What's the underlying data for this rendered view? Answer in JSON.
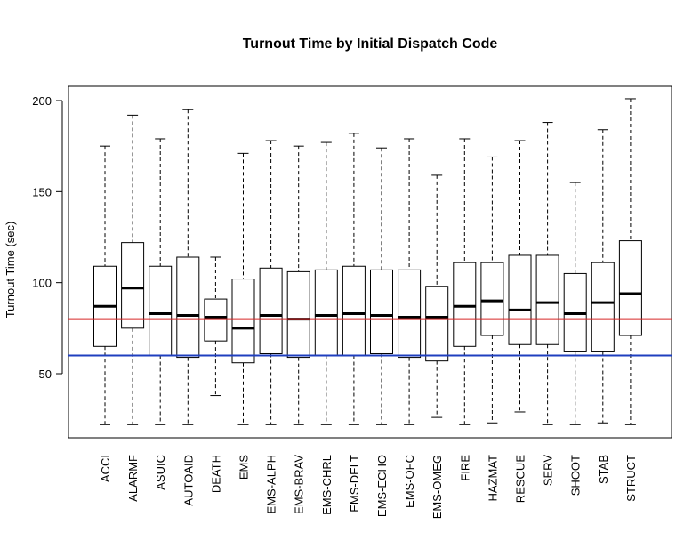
{
  "chart_data": {
    "type": "boxplot",
    "title": "Turnout Time by Initial Dispatch Code",
    "xlabel": "",
    "ylabel": "Turnout Time (sec)",
    "ylim": [
      15,
      210
    ],
    "yticks": [
      50,
      100,
      150,
      200
    ],
    "grid": false,
    "legend": "none",
    "categories": [
      "ACCI",
      "ALARMF",
      "ASUIC",
      "AUTOAID",
      "DEATH",
      "EMS",
      "EMS-ALPH",
      "EMS-BRAV",
      "EMS-CHRL",
      "EMS-DELT",
      "EMS-ECHO",
      "EMS-OFC",
      "EMS-OMEG",
      "FIRE",
      "HAZMAT",
      "RESCUE",
      "SERV",
      "SHOOT",
      "STAB",
      "STRUCT"
    ],
    "boxes": [
      {
        "whisker_low": 22,
        "q1": 65,
        "median": 87,
        "q3": 109,
        "whisker_high": 175
      },
      {
        "whisker_low": 22,
        "q1": 75,
        "median": 97,
        "q3": 122,
        "whisker_high": 192
      },
      {
        "whisker_low": 22,
        "q1": 60,
        "median": 83,
        "q3": 109,
        "whisker_high": 179
      },
      {
        "whisker_low": 22,
        "q1": 59,
        "median": 82,
        "q3": 114,
        "whisker_high": 195
      },
      {
        "whisker_low": 38,
        "q1": 68,
        "median": 81,
        "q3": 91,
        "whisker_high": 114
      },
      {
        "whisker_low": 22,
        "q1": 56,
        "median": 75,
        "q3": 102,
        "whisker_high": 171
      },
      {
        "whisker_low": 22,
        "q1": 61,
        "median": 82,
        "q3": 108,
        "whisker_high": 178
      },
      {
        "whisker_low": 22,
        "q1": 59,
        "median": 80,
        "q3": 106,
        "whisker_high": 175
      },
      {
        "whisker_low": 22,
        "q1": 60,
        "median": 82,
        "q3": 107,
        "whisker_high": 177
      },
      {
        "whisker_low": 22,
        "q1": 60,
        "median": 83,
        "q3": 109,
        "whisker_high": 182
      },
      {
        "whisker_low": 22,
        "q1": 61,
        "median": 82,
        "q3": 107,
        "whisker_high": 174
      },
      {
        "whisker_low": 22,
        "q1": 59,
        "median": 81,
        "q3": 107,
        "whisker_high": 179
      },
      {
        "whisker_low": 26,
        "q1": 57,
        "median": 81,
        "q3": 98,
        "whisker_high": 159
      },
      {
        "whisker_low": 22,
        "q1": 65,
        "median": 87,
        "q3": 111,
        "whisker_high": 179
      },
      {
        "whisker_low": 23,
        "q1": 71,
        "median": 90,
        "q3": 111,
        "whisker_high": 169
      },
      {
        "whisker_low": 29,
        "q1": 66,
        "median": 85,
        "q3": 115,
        "whisker_high": 178
      },
      {
        "whisker_low": 22,
        "q1": 66,
        "median": 89,
        "q3": 115,
        "whisker_high": 188
      },
      {
        "whisker_low": 22,
        "q1": 62,
        "median": 83,
        "q3": 105,
        "whisker_high": 155
      },
      {
        "whisker_low": 23,
        "q1": 62,
        "median": 89,
        "q3": 111,
        "whisker_high": 184
      },
      {
        "whisker_low": 22,
        "q1": 71,
        "median": 94,
        "q3": 123,
        "whisker_high": 201
      }
    ],
    "reference_lines": [
      {
        "y": 80,
        "color": "#d62728"
      },
      {
        "y": 60,
        "color": "#1f3fbf"
      }
    ]
  }
}
